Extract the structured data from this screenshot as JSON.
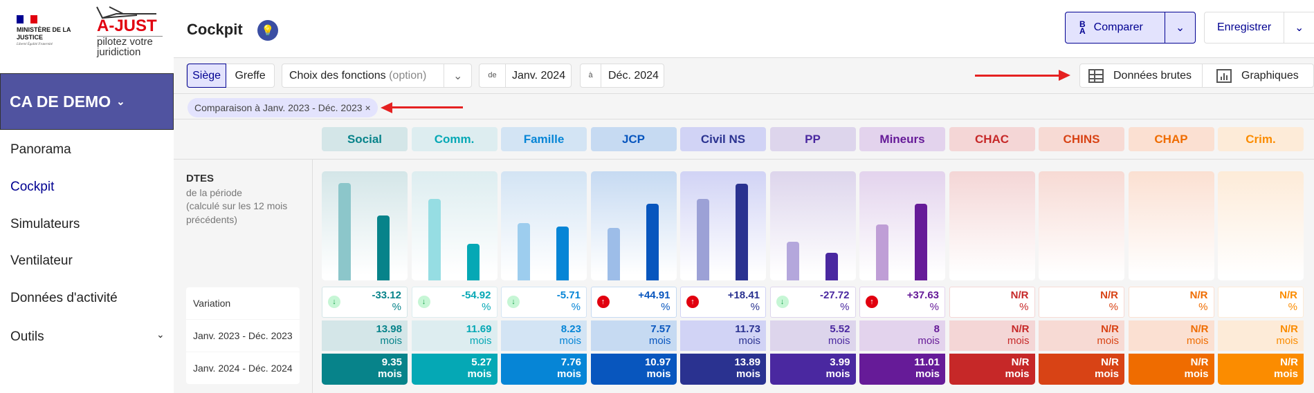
{
  "logos": {
    "ministry": "MINISTÈRE DE LA JUSTICE",
    "motto": "Liberté Égalité Fraternité",
    "app": "A-JUST",
    "tagline": "pilotez votre juridiction"
  },
  "court": "CA DE DEMO",
  "nav": [
    {
      "label": "Panorama"
    },
    {
      "label": "Cockpit"
    },
    {
      "label": "Simulateurs"
    },
    {
      "label": "Ventilateur"
    },
    {
      "label": "Données d'activité"
    },
    {
      "label": "Outils"
    }
  ],
  "header": {
    "title": "Cockpit",
    "compare": "Comparer",
    "save": "Enregistrer"
  },
  "filters": {
    "siege": "Siège",
    "greffe": "Greffe",
    "functions": "Choix des fonctions",
    "functions_hint": "(option)",
    "from_label": "de",
    "from": "Janv. 2024",
    "to_label": "à",
    "to": "Déc. 2024",
    "raw": "Données brutes",
    "charts": "Graphiques"
  },
  "chip": "Comparaison à Janv. 2023 - Déc. 2023",
  "metric": {
    "title": "DTES",
    "sub1": "de la période",
    "sub2": "(calculé sur les 12 mois précédents)"
  },
  "row_labels": {
    "variation": "Variation",
    "previous": "Janv. 2023 - Déc. 2023",
    "current": "Janv. 2024 - Déc. 2024"
  },
  "unit": "mois",
  "pct": "%",
  "columns": [
    {
      "name": "Social",
      "variation": "-33.12",
      "trend": "down",
      "previous": "13.98",
      "current": "9.35",
      "prev_val": 13.98,
      "cur_val": 9.35,
      "color": "#07838a",
      "light": "#8cc6ca",
      "bg": "#d4e6e8"
    },
    {
      "name": "Comm.",
      "variation": "-54.92",
      "trend": "down",
      "previous": "11.69",
      "current": "5.27",
      "prev_val": 11.69,
      "cur_val": 5.27,
      "color": "#05a8b5",
      "light": "#96dde3",
      "bg": "#ddedf0"
    },
    {
      "name": "Famille",
      "variation": "-5.71",
      "trend": "down",
      "previous": "8.23",
      "current": "7.76",
      "prev_val": 8.23,
      "cur_val": 7.76,
      "color": "#0685d6",
      "light": "#9dcdee",
      "bg": "#d3e4f4"
    },
    {
      "name": "JCP",
      "variation": "+44.91",
      "trend": "up",
      "previous": "7.57",
      "current": "10.97",
      "prev_val": 7.57,
      "cur_val": 10.97,
      "color": "#0856be",
      "light": "#9dbde8",
      "bg": "#c6daf2"
    },
    {
      "name": "Civil NS",
      "variation": "+18.41",
      "trend": "up",
      "previous": "11.73",
      "current": "13.89",
      "prev_val": 11.73,
      "cur_val": 13.89,
      "color": "#2a3290",
      "light": "#9ca1d6",
      "bg": "#d1d3f5"
    },
    {
      "name": "PP",
      "variation": "-27.72",
      "trend": "down",
      "previous": "5.52",
      "current": "3.99",
      "prev_val": 5.52,
      "cur_val": 3.99,
      "color": "#4a28a0",
      "light": "#b4a7dc",
      "bg": "#ddd5ec"
    },
    {
      "name": "Mineurs",
      "variation": "+37.63",
      "trend": "up",
      "previous": "8",
      "current": "11.01",
      "prev_val": 8,
      "cur_val": 11.01,
      "color": "#661b98",
      "light": "#bf9ed6",
      "bg": "#e3d3ed"
    },
    {
      "name": "CHAC",
      "variation": "N/R",
      "trend": "none",
      "previous": "N/R",
      "current": "N/R",
      "color": "#c62828",
      "bg": "#f4d6d6"
    },
    {
      "name": "CHINS",
      "variation": "N/R",
      "trend": "none",
      "previous": "N/R",
      "current": "N/R",
      "color": "#d84315",
      "bg": "#f7dad4"
    },
    {
      "name": "CHAP",
      "variation": "N/R",
      "trend": "none",
      "previous": "N/R",
      "current": "N/R",
      "color": "#ef6c00",
      "bg": "#fbe0d2"
    },
    {
      "name": "Crim.",
      "variation": "N/R",
      "trend": "none",
      "previous": "N/R",
      "current": "N/R",
      "color": "#fb8c00",
      "bg": "#fdebd8"
    }
  ]
}
